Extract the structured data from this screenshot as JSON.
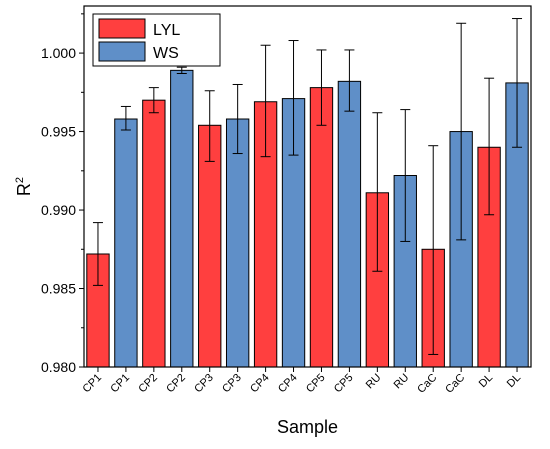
{
  "chart_data": {
    "type": "bar",
    "title": "",
    "xlabel": "Sample",
    "ylabel": "R",
    "ylabel_superscript": "2",
    "ylim": [
      0.98,
      1.003
    ],
    "yticks": [
      "0.980",
      "0.985",
      "0.990",
      "0.995",
      "1.000"
    ],
    "grid": false,
    "legend_position": "top-left",
    "categories": [
      "CP1",
      "CP1",
      "CP2",
      "CP2",
      "CP3",
      "CP3",
      "CP4",
      "CP4",
      "CP5",
      "CP5",
      "RU",
      "RU",
      "CaC",
      "CaC",
      "DL",
      "DL"
    ],
    "series": [
      {
        "name": "LYL",
        "color": "#ff3f3f"
      },
      {
        "name": "WS",
        "color": "#5f8fc8"
      }
    ],
    "bars": [
      {
        "series": 0,
        "value": 0.9872,
        "err_low": 0.9852,
        "err_high": 0.9892
      },
      {
        "series": 1,
        "value": 0.9958,
        "err_low": 0.9951,
        "err_high": 0.9966
      },
      {
        "series": 0,
        "value": 0.997,
        "err_low": 0.9962,
        "err_high": 0.9978
      },
      {
        "series": 1,
        "value": 0.9989,
        "err_low": 0.9987,
        "err_high": 0.9991
      },
      {
        "series": 0,
        "value": 0.9954,
        "err_low": 0.9931,
        "err_high": 0.9976
      },
      {
        "series": 1,
        "value": 0.9958,
        "err_low": 0.9936,
        "err_high": 0.998
      },
      {
        "series": 0,
        "value": 0.9969,
        "err_low": 0.9934,
        "err_high": 1.0005
      },
      {
        "series": 1,
        "value": 0.9971,
        "err_low": 0.9935,
        "err_high": 1.0008
      },
      {
        "series": 0,
        "value": 0.9978,
        "err_low": 0.9954,
        "err_high": 1.0002
      },
      {
        "series": 1,
        "value": 0.9982,
        "err_low": 0.9963,
        "err_high": 1.0002
      },
      {
        "series": 0,
        "value": 0.9911,
        "err_low": 0.9861,
        "err_high": 0.9962
      },
      {
        "series": 1,
        "value": 0.9922,
        "err_low": 0.988,
        "err_high": 0.9964
      },
      {
        "series": 0,
        "value": 0.9875,
        "err_low": 0.9808,
        "err_high": 0.9941
      },
      {
        "series": 1,
        "value": 0.995,
        "err_low": 0.9881,
        "err_high": 1.0019
      },
      {
        "series": 0,
        "value": 0.994,
        "err_low": 0.9897,
        "err_high": 0.9984
      },
      {
        "series": 1,
        "value": 0.9981,
        "err_low": 0.994,
        "err_high": 1.0022
      }
    ]
  }
}
